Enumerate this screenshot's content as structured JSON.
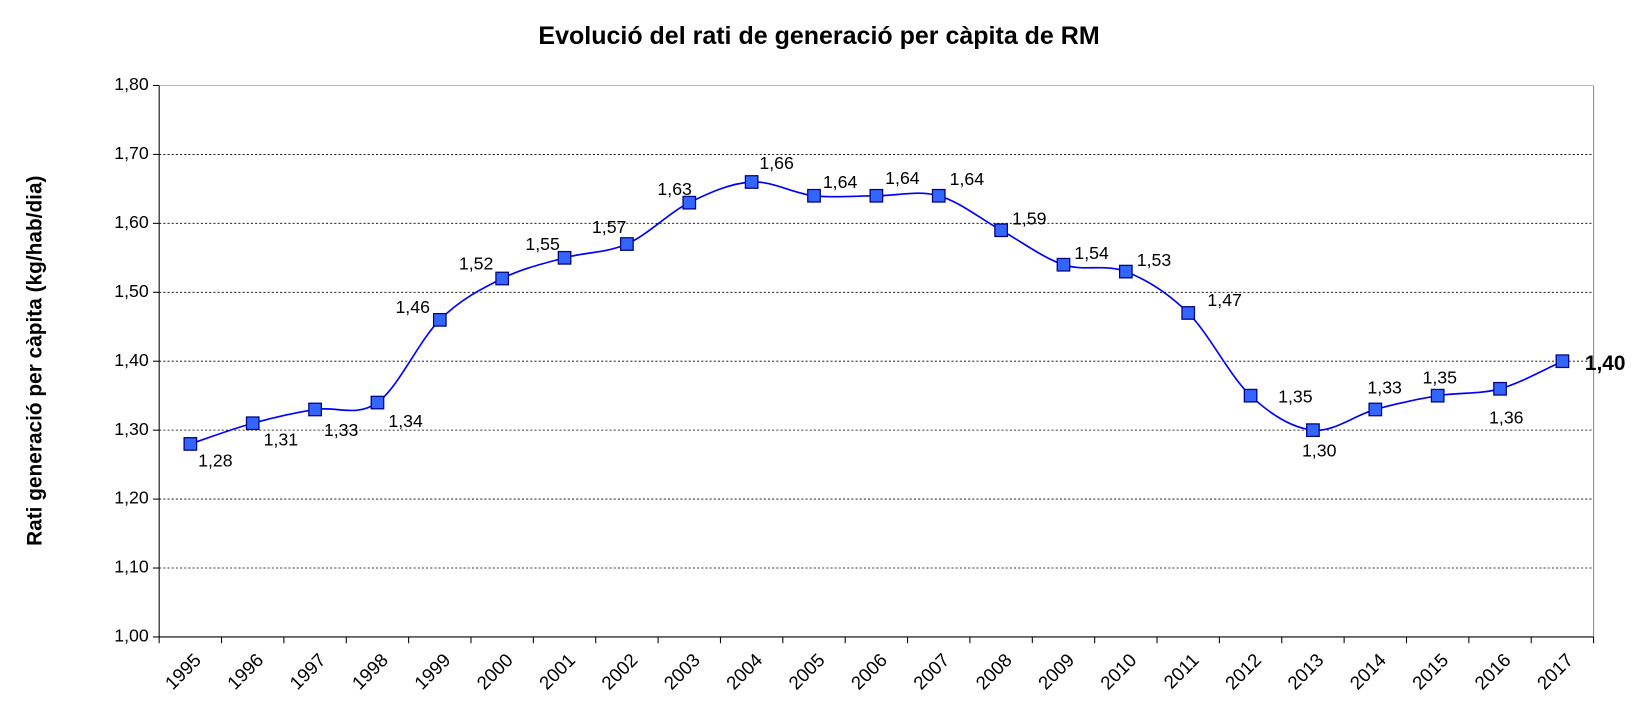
{
  "chart_data": {
    "type": "line",
    "title": "Evolució del rati de generació per càpita de RM",
    "y_label": "Rati generació per càpita (kg/hab/dia)",
    "categories": [
      "1995",
      "1996",
      "1997",
      "1998",
      "1999",
      "2000",
      "2001",
      "2002",
      "2003",
      "2004",
      "2005",
      "2006",
      "2007",
      "2008",
      "2009",
      "2010",
      "2011",
      "2012",
      "2013",
      "2014",
      "2015",
      "2016",
      "2017"
    ],
    "series": [
      {
        "name": "Rati",
        "color": "#0000ff",
        "marker_color": "#3366ff",
        "values": [
          1.28,
          1.31,
          1.33,
          1.34,
          1.46,
          1.52,
          1.55,
          1.57,
          1.63,
          1.66,
          1.64,
          1.64,
          1.64,
          1.59,
          1.54,
          1.53,
          1.47,
          1.35,
          1.3,
          1.33,
          1.35,
          1.36,
          1.4
        ],
        "value_labels": [
          "1,28",
          "1,31",
          "1,33",
          "1,34",
          "1,46",
          "1,52",
          "1,55",
          "1,57",
          "1,63",
          "1,66",
          "1,64",
          "1,64",
          "1,64",
          "1,59",
          "1,54",
          "1,53",
          "1,47",
          "1,35",
          "1,30",
          "1,33",
          "1,35",
          "1,36",
          "1,40"
        ]
      }
    ],
    "ylim": [
      1.0,
      1.8
    ],
    "yticks": [
      {
        "value": 1.0,
        "label": "1,00"
      },
      {
        "value": 1.1,
        "label": "1,10"
      },
      {
        "value": 1.2,
        "label": "1,20"
      },
      {
        "value": 1.3,
        "label": "1,30"
      },
      {
        "value": 1.4,
        "label": "1,40"
      },
      {
        "value": 1.5,
        "label": "1,50"
      },
      {
        "value": 1.6,
        "label": "1,60"
      },
      {
        "value": 1.7,
        "label": "1,70"
      },
      {
        "value": 1.8,
        "label": "1,80"
      }
    ],
    "grid": true
  }
}
